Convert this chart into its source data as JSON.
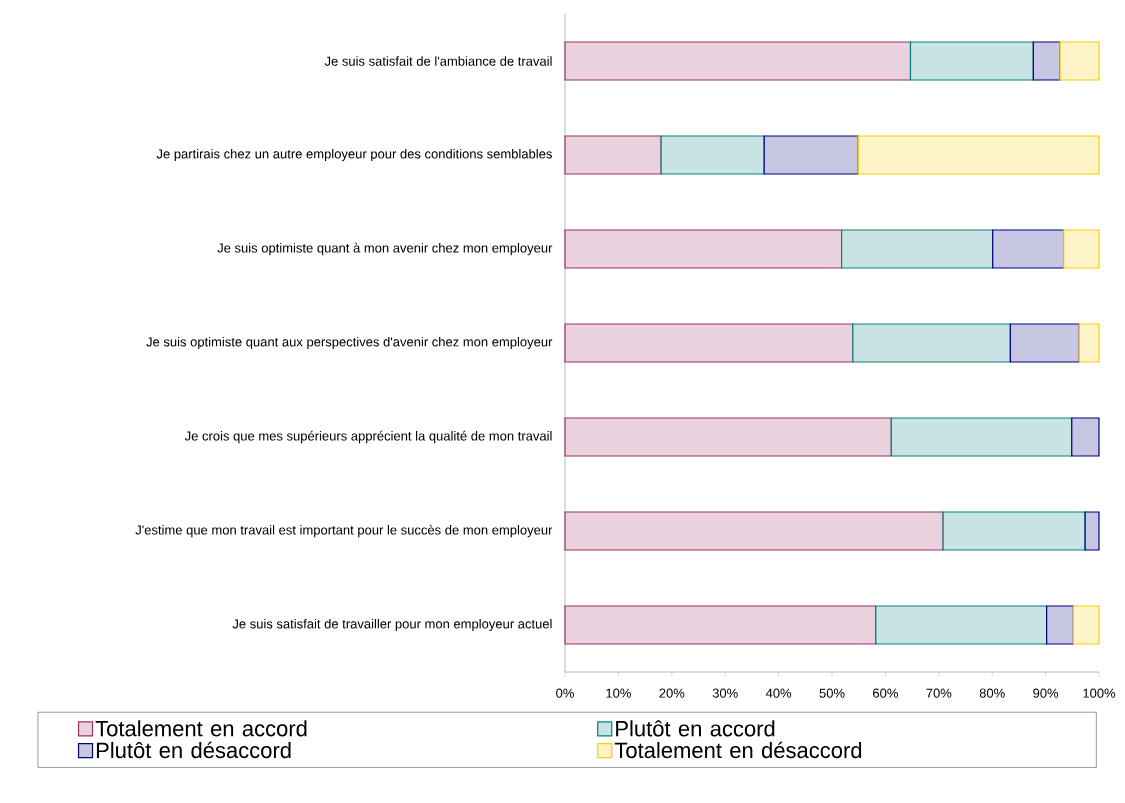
{
  "chart_data": {
    "type": "bar",
    "orientation": "horizontal",
    "stacked": true,
    "categories": [
      "Je suis satisfait de l'ambiance de travail",
      "Je partirais chez un autre employeur pour des conditions semblables",
      "Je suis optimiste quant à mon avenir chez mon employeur",
      "Je suis optimiste quant aux perspectives d'avenir chez mon employeur",
      "Je crois que mes supérieurs apprécient la qualité de mon travail",
      "J'estime que mon travail est important pour le succès de mon employeur",
      "Je suis satisfait de travailler pour mon employeur actuel"
    ],
    "series": [
      {
        "name": "Totalement en accord",
        "color": "#993366",
        "values": [
          64.7,
          18.0,
          51.8,
          53.9,
          61.1,
          70.8,
          58.2
        ]
      },
      {
        "name": "Plutôt en accord",
        "color": "#008080",
        "values": [
          23.0,
          19.3,
          28.3,
          29.5,
          33.8,
          26.6,
          32.0
        ]
      },
      {
        "name": "Plutôt en désaccord",
        "color": "#000080",
        "values": [
          5.0,
          17.6,
          13.3,
          12.9,
          5.1,
          2.6,
          5.0
        ]
      },
      {
        "name": "Totalement en désaccord",
        "color": "#ffcc00",
        "values": [
          7.3,
          45.1,
          6.6,
          3.7,
          null,
          null,
          4.8
        ]
      }
    ],
    "xlim": [
      0,
      100
    ],
    "xticks": [
      {
        "value": 0,
        "label": "0%"
      },
      {
        "value": 10,
        "label": "10%"
      },
      {
        "value": 20,
        "label": "20%"
      },
      {
        "value": 30,
        "label": "30%"
      },
      {
        "value": 40,
        "label": "40%"
      },
      {
        "value": 50,
        "label": "50%"
      },
      {
        "value": 60,
        "label": "60%"
      },
      {
        "value": 70,
        "label": "70%"
      },
      {
        "value": 80,
        "label": "80%"
      },
      {
        "value": 90,
        "label": "90%"
      },
      {
        "value": 100,
        "label": "100%"
      }
    ],
    "legend": "bottom"
  }
}
